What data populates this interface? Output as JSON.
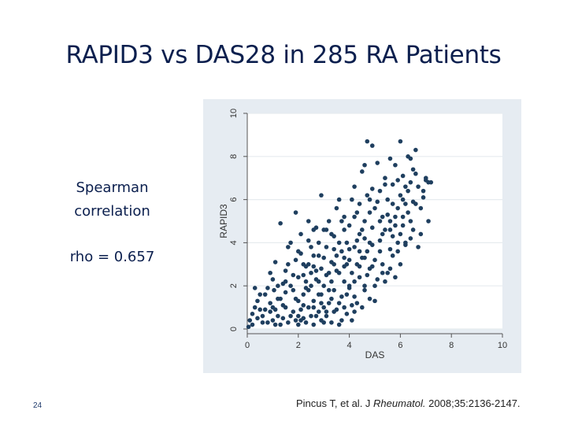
{
  "title": "RAPID3 vs DAS28 in 285 RA Patients",
  "annotation": {
    "line1": "Spearman",
    "line2": "correlation",
    "rho": "rho = 0.657"
  },
  "slide_number": "24",
  "citation": {
    "authors": "Pincus T, et al. J",
    "journal": "Rheumatol.",
    "details": "2008;35:2136-2147."
  },
  "chart_data": {
    "type": "scatter",
    "title": "",
    "xlabel": "DAS",
    "ylabel": "RAPID3",
    "xlim": [
      0,
      10
    ],
    "ylim": [
      0,
      10
    ],
    "xticks": [
      "0",
      "2",
      "4",
      "6",
      "8",
      "10"
    ],
    "yticks": [
      "0",
      "2",
      "4",
      "6",
      "8",
      "10"
    ],
    "grid": true,
    "marker_color": "#1f3f5f",
    "points": [
      [
        0.05,
        0.1
      ],
      [
        0.1,
        0.4
      ],
      [
        0.2,
        0.7
      ],
      [
        0.3,
        1.0
      ],
      [
        0.4,
        1.3
      ],
      [
        0.5,
        1.6
      ],
      [
        0.4,
        0.5
      ],
      [
        0.6,
        0.3
      ],
      [
        0.7,
        0.9
      ],
      [
        0.8,
        1.9
      ],
      [
        0.9,
        1.2
      ],
      [
        1.0,
        0.4
      ],
      [
        1.05,
        1.8
      ],
      [
        1.1,
        0.9
      ],
      [
        1.2,
        0.6
      ],
      [
        1.3,
        0.2
      ],
      [
        1.3,
        1.4
      ],
      [
        1.4,
        2.1
      ],
      [
        1.5,
        1.7
      ],
      [
        1.5,
        1.0
      ],
      [
        1.6,
        0.3
      ],
      [
        1.7,
        0.6
      ],
      [
        1.7,
        2.0
      ],
      [
        1.8,
        0.8
      ],
      [
        1.9,
        0.4
      ],
      [
        1.9,
        1.4
      ],
      [
        2.0,
        2.4
      ],
      [
        2.0,
        0.2
      ],
      [
        2.1,
        0.9
      ],
      [
        2.1,
        3.5
      ],
      [
        2.2,
        0.5
      ],
      [
        2.2,
        1.6
      ],
      [
        2.3,
        2.2
      ],
      [
        2.3,
        0.3
      ],
      [
        2.4,
        1.0
      ],
      [
        2.4,
        3.0
      ],
      [
        2.5,
        0.6
      ],
      [
        2.5,
        2.6
      ],
      [
        2.6,
        0.2
      ],
      [
        2.6,
        1.3
      ],
      [
        2.7,
        4.7
      ],
      [
        2.7,
        2.3
      ],
      [
        2.8,
        0.8
      ],
      [
        2.8,
        3.4
      ],
      [
        2.9,
        1.6
      ],
      [
        2.9,
        0.4
      ],
      [
        3.0,
        2.0
      ],
      [
        3.0,
        4.6
      ],
      [
        3.1,
        0.6
      ],
      [
        3.1,
        2.5
      ],
      [
        3.2,
        1.2
      ],
      [
        3.2,
        5.0
      ],
      [
        3.3,
        0.3
      ],
      [
        3.3,
        3.1
      ],
      [
        3.4,
        1.8
      ],
      [
        3.4,
        4.3
      ],
      [
        3.5,
        0.9
      ],
      [
        3.5,
        2.7
      ],
      [
        3.6,
        0.2
      ],
      [
        3.6,
        4.0
      ],
      [
        3.7,
        1.5
      ],
      [
        3.7,
        3.6
      ],
      [
        3.8,
        2.2
      ],
      [
        3.8,
        5.2
      ],
      [
        3.9,
        0.7
      ],
      [
        3.9,
        3.0
      ],
      [
        4.0,
        1.9
      ],
      [
        4.0,
        4.8
      ],
      [
        4.1,
        0.4
      ],
      [
        4.1,
        2.6
      ],
      [
        4.2,
        3.8
      ],
      [
        4.2,
        6.6
      ],
      [
        4.3,
        1.2
      ],
      [
        4.3,
        5.4
      ],
      [
        4.4,
        2.4
      ],
      [
        4.4,
        4.4
      ],
      [
        4.5,
        3.3
      ],
      [
        4.5,
        7.3
      ],
      [
        4.6,
        2.0
      ],
      [
        4.6,
        5.0
      ],
      [
        4.7,
        8.7
      ],
      [
        4.7,
        3.6
      ],
      [
        4.8,
        1.4
      ],
      [
        4.8,
        6.0
      ],
      [
        4.9,
        2.9
      ],
      [
        4.9,
        4.7
      ],
      [
        5.0,
        5.6
      ],
      [
        5.0,
        3.2
      ],
      [
        5.1,
        7.7
      ],
      [
        5.1,
        2.3
      ],
      [
        5.2,
        4.1
      ],
      [
        5.2,
        6.4
      ],
      [
        5.3,
        3.0
      ],
      [
        5.3,
        5.2
      ],
      [
        5.4,
        7.0
      ],
      [
        5.4,
        4.6
      ],
      [
        5.5,
        2.6
      ],
      [
        5.5,
        6.0
      ],
      [
        5.6,
        3.7
      ],
      [
        5.6,
        5.0
      ],
      [
        5.7,
        6.7
      ],
      [
        5.7,
        4.3
      ],
      [
        5.8,
        2.4
      ],
      [
        5.8,
        7.6
      ],
      [
        5.9,
        3.6
      ],
      [
        5.9,
        5.6
      ],
      [
        6.0,
        8.7
      ],
      [
        6.0,
        6.2
      ],
      [
        6.1,
        7.1
      ],
      [
        6.1,
        4.8
      ],
      [
        6.2,
        3.9
      ],
      [
        6.2,
        6.6
      ],
      [
        6.3,
        8.0
      ],
      [
        6.3,
        5.4
      ],
      [
        6.4,
        4.2
      ],
      [
        6.4,
        6.8
      ],
      [
        6.5,
        7.4
      ],
      [
        6.6,
        5.8
      ],
      [
        6.7,
        3.8
      ],
      [
        6.8,
        4.4
      ],
      [
        6.9,
        6.4
      ],
      [
        7.0,
        6.9
      ],
      [
        7.1,
        6.8
      ],
      [
        7.1,
        5.0
      ],
      [
        6.6,
        8.3
      ],
      [
        5.6,
        7.9
      ],
      [
        4.9,
        8.5
      ],
      [
        2.9,
        6.2
      ],
      [
        3.6,
        6.0
      ],
      [
        1.6,
        3.8
      ],
      [
        2.6,
        4.6
      ],
      [
        1.9,
        5.4
      ],
      [
        4.6,
        3.3
      ],
      [
        3.2,
        1.8
      ],
      [
        2.0,
        0.6
      ],
      [
        2.4,
        1.8
      ],
      [
        3.0,
        1.0
      ],
      [
        3.4,
        0.8
      ],
      [
        3.8,
        1.0
      ],
      [
        4.2,
        1.5
      ],
      [
        2.2,
        1.1
      ],
      [
        2.8,
        1.6
      ],
      [
        3.6,
        2.6
      ],
      [
        4.0,
        3.2
      ],
      [
        5.4,
        2.2
      ],
      [
        4.8,
        4.0
      ],
      [
        5.0,
        2.0
      ],
      [
        6.0,
        3.0
      ],
      [
        5.8,
        4.8
      ],
      [
        6.4,
        5.0
      ],
      [
        4.4,
        5.8
      ],
      [
        3.8,
        4.6
      ],
      [
        2.6,
        3.4
      ],
      [
        2.3,
        2.9
      ],
      [
        1.8,
        2.5
      ],
      [
        1.5,
        2.7
      ],
      [
        1.2,
        1.4
      ],
      [
        0.9,
        0.8
      ],
      [
        1.0,
        2.3
      ],
      [
        1.4,
        0.5
      ],
      [
        2.7,
        0.6
      ],
      [
        3.3,
        2.2
      ],
      [
        3.9,
        1.6
      ],
      [
        4.5,
        1.0
      ],
      [
        5.2,
        3.6
      ],
      [
        5.6,
        2.8
      ],
      [
        6.2,
        5.8
      ],
      [
        6.7,
        6.6
      ],
      [
        4.3,
        3.0
      ],
      [
        3.5,
        3.4
      ],
      [
        2.5,
        2.0
      ],
      [
        2.9,
        2.8
      ],
      [
        3.1,
        3.8
      ],
      [
        4.7,
        2.5
      ],
      [
        5.3,
        4.4
      ],
      [
        5.9,
        6.9
      ],
      [
        4.1,
        6.0
      ],
      [
        3.7,
        5.0
      ],
      [
        2.1,
        4.4
      ],
      [
        1.7,
        4.0
      ],
      [
        1.3,
        4.9
      ],
      [
        2.4,
        5.0
      ],
      [
        4.9,
        6.5
      ],
      [
        5.5,
        5.3
      ],
      [
        6.1,
        6.0
      ],
      [
        6.5,
        4.6
      ],
      [
        7.0,
        7.0
      ],
      [
        4.2,
        0.8
      ],
      [
        3.0,
        0.3
      ],
      [
        2.1,
        0.4
      ],
      [
        1.0,
        1.0
      ],
      [
        0.7,
        1.6
      ],
      [
        0.2,
        0.2
      ],
      [
        4.6,
        7.6
      ],
      [
        5.1,
        5.9
      ],
      [
        4.4,
        2.9
      ],
      [
        3.3,
        4.4
      ],
      [
        2.2,
        3.0
      ],
      [
        1.5,
        2.2
      ],
      [
        1.1,
        3.1
      ],
      [
        4.0,
        2.0
      ],
      [
        3.6,
        1.2
      ],
      [
        3.2,
        2.6
      ],
      [
        2.8,
        2.2
      ],
      [
        2.6,
        1.0
      ],
      [
        2.0,
        1.3
      ],
      [
        2.3,
        1.9
      ],
      [
        4.3,
        4.1
      ],
      [
        3.9,
        4.0
      ],
      [
        5.7,
        3.4
      ],
      [
        6.3,
        6.4
      ],
      [
        6.6,
        7.2
      ],
      [
        5.2,
        5.0
      ],
      [
        4.5,
        4.6
      ],
      [
        4.8,
        5.4
      ],
      [
        3.4,
        3.0
      ],
      [
        2.5,
        3.8
      ],
      [
        1.9,
        3.2
      ],
      [
        1.2,
        2.0
      ],
      [
        0.9,
        2.6
      ],
      [
        0.5,
        0.9
      ],
      [
        0.3,
        1.9
      ],
      [
        3.1,
        0.8
      ],
      [
        2.9,
        1.2
      ],
      [
        3.7,
        0.4
      ],
      [
        4.1,
        1.1
      ],
      [
        4.6,
        1.8
      ],
      [
        5.0,
        1.3
      ],
      [
        5.8,
        5.2
      ],
      [
        6.0,
        4.4
      ],
      [
        6.4,
        7.9
      ],
      [
        5.4,
        6.7
      ],
      [
        4.7,
        6.2
      ],
      [
        4.2,
        5.2
      ],
      [
        3.5,
        5.6
      ],
      [
        2.8,
        4.0
      ],
      [
        2.0,
        3.6
      ],
      [
        1.6,
        3.0
      ],
      [
        1.4,
        1.1
      ],
      [
        2.7,
        2.7
      ],
      [
        3.3,
        1.4
      ],
      [
        3.8,
        2.9
      ],
      [
        4.4,
        3.6
      ],
      [
        4.9,
        3.9
      ],
      [
        5.6,
        4.6
      ],
      [
        6.2,
        4.0
      ],
      [
        6.8,
        5.6
      ],
      [
        5.9,
        4.0
      ],
      [
        4.6,
        4.2
      ],
      [
        4.0,
        3.7
      ],
      [
        3.1,
        4.6
      ],
      [
        2.4,
        4.1
      ],
      [
        1.8,
        1.8
      ],
      [
        1.1,
        0.2
      ],
      [
        0.6,
        0.6
      ],
      [
        0.8,
        0.3
      ],
      [
        2.2,
        2.5
      ],
      [
        2.6,
        2.9
      ],
      [
        3.0,
        3.3
      ],
      [
        3.4,
        3.7
      ],
      [
        3.8,
        3.3
      ],
      [
        4.2,
        2.2
      ],
      [
        4.8,
        2.8
      ],
      [
        5.3,
        2.6
      ],
      [
        5.7,
        5.8
      ],
      [
        6.1,
        5.2
      ],
      [
        6.5,
        5.9
      ],
      [
        6.9,
        6.1
      ],
      [
        7.2,
        6.8
      ]
    ]
  }
}
